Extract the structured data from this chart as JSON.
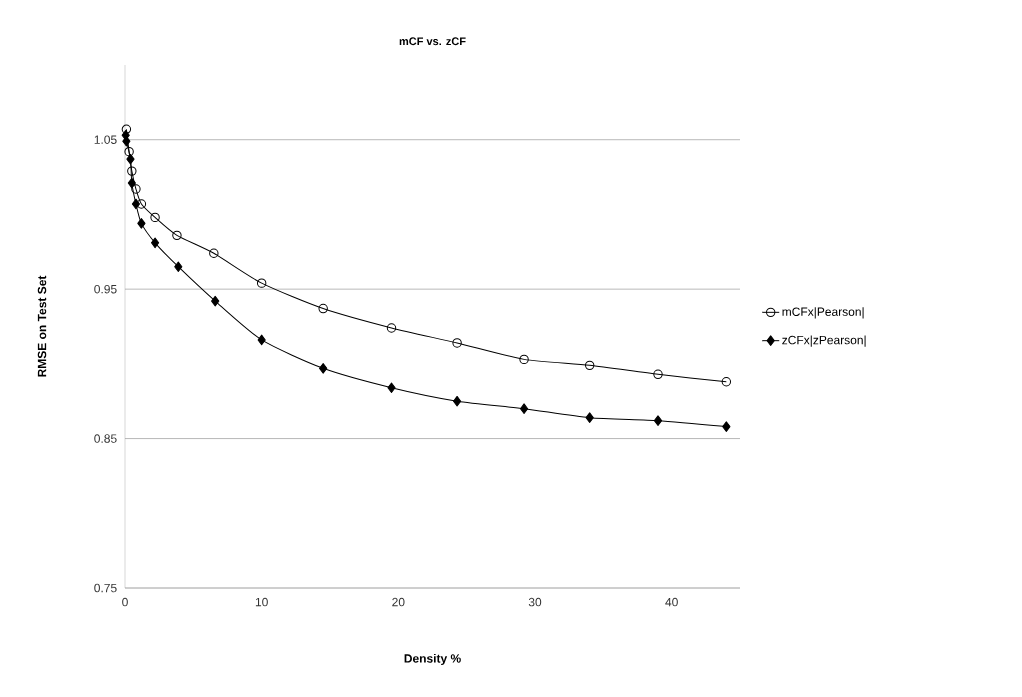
{
  "chart_data": {
    "type": "line",
    "title": "mCF vs. zCF",
    "xlabel": "Density %",
    "ylabel": "RMSE on Test Set",
    "xlim": [
      0,
      45
    ],
    "xticks": [
      0,
      10,
      20,
      30,
      40
    ],
    "ylim": [
      0.75,
      1.1
    ],
    "yticks": [
      0.75,
      0.85,
      0.95,
      1.05
    ],
    "grid": "y",
    "legend": "right",
    "line_style": "solid",
    "series": [
      {
        "name": "mCFx|Pearson|",
        "color": "#000000",
        "marker": "circle",
        "x": [
          0.1,
          0.3,
          0.5,
          0.8,
          1.2,
          2.2,
          3.8,
          6.5,
          10,
          14.5,
          19.5,
          24.3,
          29.2,
          34,
          39,
          44
        ],
        "values": [
          1.057,
          1.042,
          1.029,
          1.017,
          1.007,
          0.998,
          0.986,
          0.974,
          0.954,
          0.937,
          0.924,
          0.914,
          0.903,
          0.899,
          0.893,
          0.888
        ]
      },
      {
        "name": "zCFx|zPearson|",
        "color": "#000000",
        "marker": "diamond",
        "x": [
          0.05,
          0.1,
          0.4,
          0.5,
          0.8,
          1.2,
          2.2,
          3.9,
          6.6,
          10,
          14.5,
          19.5,
          24.3,
          29.2,
          34,
          39,
          44
        ],
        "values": [
          1.053,
          1.049,
          1.037,
          1.021,
          1.007,
          0.994,
          0.981,
          0.965,
          0.942,
          0.916,
          0.897,
          0.884,
          0.875,
          0.87,
          0.864,
          0.862,
          0.858
        ]
      }
    ]
  }
}
